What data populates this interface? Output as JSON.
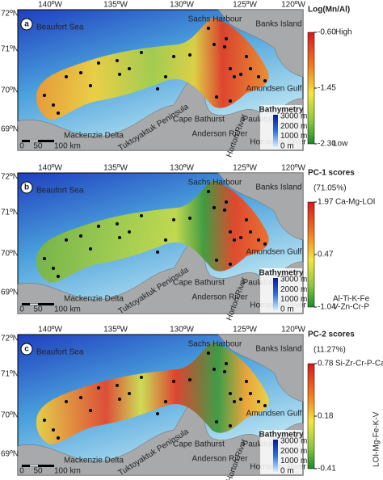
{
  "panels": [
    {
      "label": "a",
      "title": "Log(Mn/Al)",
      "scale_ticks": [
        "-0.60",
        "-1.45",
        "-2.30"
      ],
      "annotations_top": [
        "High"
      ],
      "annotations_bottom": [
        "Low"
      ],
      "longitudes": [
        "140ºW",
        "135ºW",
        "130ºW",
        "125ºW",
        "120ºW"
      ],
      "latitudes": [
        "72ºN",
        "71ºN",
        "70ºN",
        "69ºN"
      ],
      "places": [
        "Beaufort Sea",
        "Banks Island",
        "Sachs Harbour",
        "Amundsen Gulf",
        "Mackenzie Delta",
        "Tuktoyaktuk Peninsula",
        "Cape Bathurst",
        "Anderson River",
        "Horton River",
        "Paulatuk",
        "Hornaday River"
      ],
      "bathymetry": {
        "title": "Bathymetry",
        "ticks": [
          "3000 m",
          "2000 m",
          "1000 m",
          "0 m"
        ]
      },
      "scale_bar": [
        "0",
        "50",
        "100 km"
      ]
    },
    {
      "label": "b",
      "title": "PC-1 scores",
      "subtitle": "(71.05%)",
      "scale_ticks": [
        "1.97",
        "0.47",
        "-1.04"
      ],
      "annotations_top": [
        "Ca-Mg-LOI"
      ],
      "annotations_bottom": [
        "Al-Ti-K-Fe",
        "V-Zn-Cr-P"
      ],
      "longitudes": [
        "140ºW",
        "135ºW",
        "130ºW",
        "125ºW",
        "120ºW"
      ],
      "latitudes": [
        "72ºN",
        "71ºN",
        "70ºN",
        "69ºN"
      ],
      "places": [
        "Beaufort Sea",
        "Banks Island",
        "Sachs Harbour",
        "Amundsen Gulf",
        "Mackenzie Delta",
        "Tuktoyaktuk Peninsula",
        "Cape Bathurst",
        "Anderson River",
        "Horton River",
        "Paulatuk",
        "Hornaday River"
      ],
      "bathymetry": {
        "title": "Bathymetry",
        "ticks": [
          "3000 m",
          "2000 m",
          "1000 m",
          "0 m"
        ]
      },
      "scale_bar": [
        "0",
        "50",
        "100 km"
      ]
    },
    {
      "label": "c",
      "title": "PC-2 scores",
      "subtitle": "(11.27%)",
      "scale_ticks": [
        "0.78",
        "0.18",
        "-0.41"
      ],
      "annotations_top": [
        "Si-Zr-Cr-P-Ca"
      ],
      "annotations_bottom": [
        "LOI-Mg-Fe-K-V"
      ],
      "longitudes": [
        "140ºW",
        "135ºW",
        "130ºW",
        "125ºW",
        "120ºW"
      ],
      "latitudes": [
        "72ºN",
        "71ºN",
        "70ºN",
        "69ºN"
      ],
      "places": [
        "Beaufort Sea",
        "Banks Island",
        "Sachs Harbour",
        "Amundsen Gulf",
        "Mackenzie Delta",
        "Tuktoyaktuk Peninsula",
        "Cape Bathurst",
        "Anderson River",
        "Horton River",
        "Paulatuk",
        "Hornaday River"
      ],
      "bathymetry": {
        "title": "Bathymetry",
        "ticks": [
          "3000 m",
          "2000 m",
          "1000 m",
          "0 m"
        ]
      },
      "scale_bar": [
        "0",
        "50",
        "100 km"
      ]
    }
  ]
}
